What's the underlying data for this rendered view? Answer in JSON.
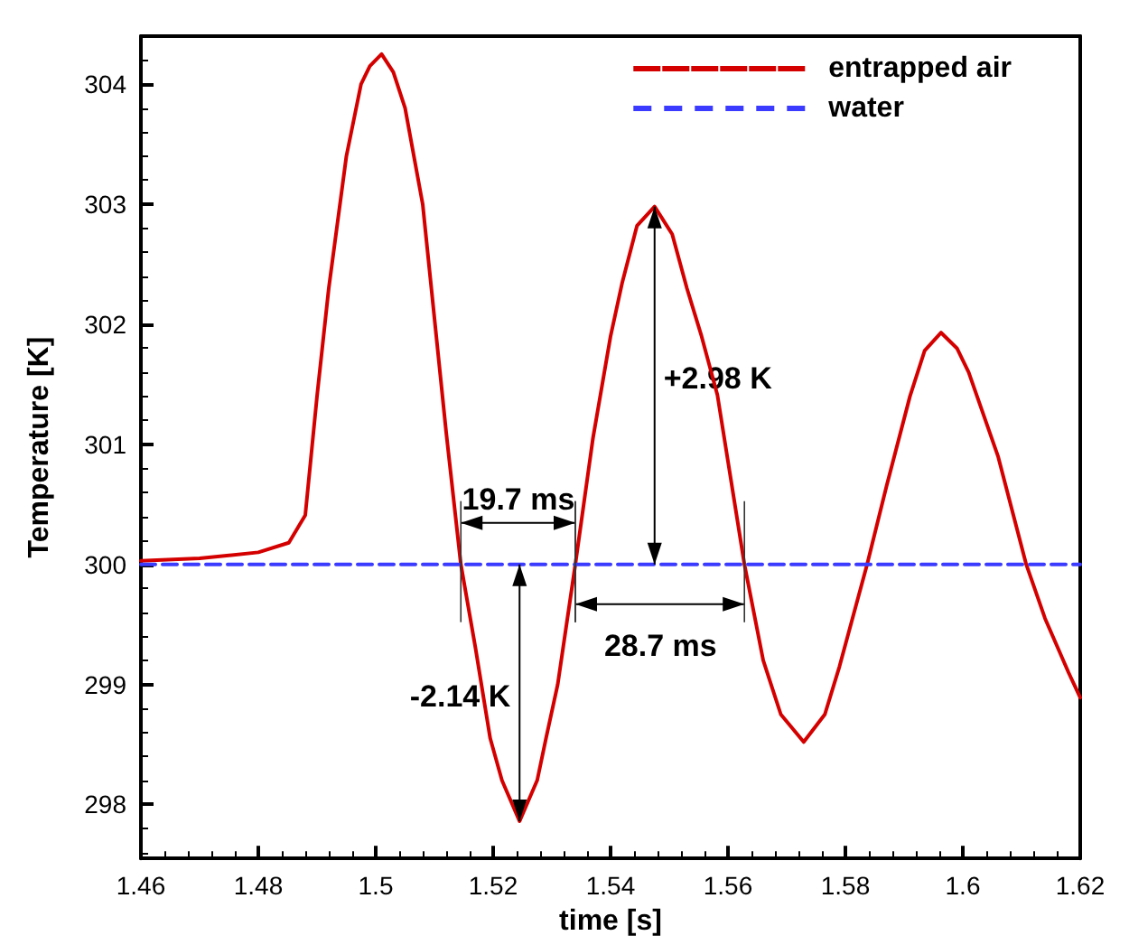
{
  "chart_data": {
    "type": "line",
    "xlabel": "time [s]",
    "ylabel": "Temperature [K]",
    "series": [
      {
        "name": "entrapped air",
        "color": "#d40000",
        "line_style": "solid",
        "x": [
          1.46,
          1.47,
          1.48,
          1.4852,
          1.488,
          1.49,
          1.492,
          1.495,
          1.4975,
          1.499,
          1.501,
          1.503,
          1.505,
          1.508,
          1.512,
          1.5145,
          1.517,
          1.5195,
          1.5215,
          1.5245,
          1.5275,
          1.529,
          1.531,
          1.534,
          1.537,
          1.54,
          1.542,
          1.5445,
          1.5475,
          1.5505,
          1.553,
          1.5555,
          1.5582,
          1.5628,
          1.566,
          1.569,
          1.5729,
          1.5765,
          1.579,
          1.5837,
          1.587,
          1.591,
          1.5935,
          1.5963,
          1.599,
          1.601,
          1.606,
          1.6108,
          1.614,
          1.618,
          1.62
        ],
        "values": [
          300.03,
          300.05,
          300.1,
          300.18,
          300.41,
          301.4,
          302.3,
          303.4,
          304.0,
          304.15,
          304.25,
          304.1,
          303.8,
          303.0,
          301.1,
          300,
          299.3,
          298.55,
          298.2,
          297.86,
          298.2,
          298.55,
          299.0,
          300,
          301.05,
          301.9,
          302.35,
          302.82,
          302.98,
          302.75,
          302.3,
          301.9,
          301.41,
          300,
          299.2,
          298.75,
          298.52,
          298.75,
          299.15,
          300,
          300.65,
          301.4,
          301.78,
          301.93,
          301.8,
          301.6,
          300.9,
          300,
          299.55,
          299.1,
          298.89
        ]
      },
      {
        "name": "water",
        "color": "#3b3bff",
        "line_style": "dashed",
        "x": [
          1.46,
          1.62
        ],
        "values": [
          300,
          300
        ]
      }
    ],
    "annotations": [
      {
        "text": "19.7 ms",
        "x": 1.5243,
        "y": 300
      },
      {
        "text": "28.7 ms",
        "x": 1.5485,
        "y": 300
      },
      "-2.14 K",
      "+2.98 K"
    ],
    "xlim": [
      1.46,
      1.62
    ],
    "xticks": [
      1.46,
      1.48,
      1.5,
      1.52,
      1.54,
      1.56,
      1.58,
      1.6,
      1.62
    ],
    "ylim": [
      297.55,
      304.4
    ],
    "yticks": [
      298,
      299,
      300,
      301,
      302,
      303,
      304
    ],
    "grid": false,
    "legend": "top right",
    "marker": "none"
  }
}
